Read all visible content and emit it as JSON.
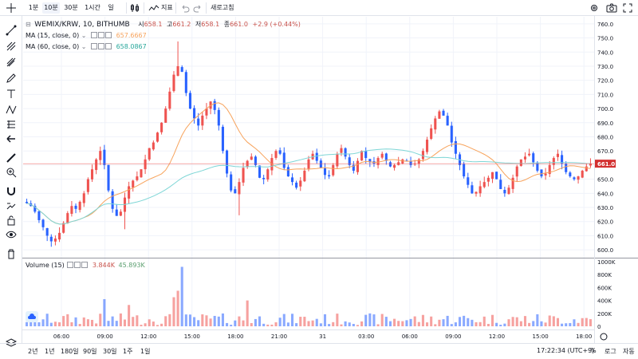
{
  "toolbar": {
    "intervals": [
      "1분",
      "10분",
      "30분",
      "1시간",
      "일"
    ],
    "active_interval": "10분",
    "indicator_label": "지표",
    "undo_icon": "undo-icon",
    "redo_icon": "redo-icon",
    "refresh_label": "새로고침"
  },
  "legend": {
    "symbol": "WEMIX/KRW, 10, BITHUMB",
    "open_label": "시",
    "open": "658.1",
    "high_label": "고",
    "high": "661.2",
    "low_label": "저",
    "low": "658.1",
    "close_label": "종",
    "close": "661.0",
    "change": "+2.9 (+0.44%)",
    "ma15_label": "MA (15, close, 0)",
    "ma15_value": "657.6667",
    "ma60_label": "MA (60, close, 0)",
    "ma60_value": "658.0867",
    "volume_label": "Volume (15)",
    "volume_a": "3.844K",
    "volume_b": "45.893K"
  },
  "price_axis": {
    "ticks": [
      "760.0",
      "750.0",
      "740.0",
      "730.0",
      "720.0",
      "710.0",
      "700.0",
      "690.0",
      "680.0",
      "670.0",
      "660.0",
      "650.0",
      "640.0",
      "630.0",
      "620.0",
      "610.0",
      "600.0"
    ],
    "current_price": "661.0"
  },
  "volume_axis": {
    "ticks": [
      "1000K",
      "800K",
      "600K",
      "400K",
      "200K",
      "0"
    ]
  },
  "time_axis": {
    "ticks": [
      "06:00",
      "09:00",
      "12:00",
      "15:00",
      "18:00",
      "21:00",
      "31",
      "03:00",
      "06:00",
      "09:00",
      "12:00",
      "15:00",
      "18:00"
    ]
  },
  "bottombar": {
    "ranges": [
      "2년",
      "1년",
      "180일",
      "90일",
      "30일",
      "1주",
      "1일"
    ],
    "clock": "17:22:34 (UTC+9)",
    "percent_label": "%",
    "log_label": "로그",
    "auto_label": "자동"
  },
  "colors": {
    "up": "#ef5350",
    "down": "#2962ff",
    "ma15": "#f7a35c",
    "ma60": "#7ed6d6",
    "up_legend": "#c8524b",
    "vol_b": "#5a9e6f"
  },
  "chart_data": {
    "type": "candlestick",
    "symbol": "WEMIX/KRW",
    "interval": "10",
    "exchange": "BITHUMB",
    "ylim": [
      595,
      765
    ],
    "volume_ylim": [
      0,
      1000000
    ],
    "close_series_approx": [
      633,
      631,
      627,
      621,
      616,
      610,
      606,
      608,
      612,
      619,
      626,
      631,
      629,
      634,
      640,
      650,
      657,
      664,
      670,
      660,
      642,
      629,
      624,
      627,
      637,
      645,
      649,
      652,
      657,
      664,
      672,
      676,
      683,
      690,
      700,
      712,
      724,
      730,
      726,
      711,
      700,
      693,
      688,
      695,
      700,
      705,
      699,
      688,
      670,
      654,
      642,
      640,
      648,
      658,
      663,
      666,
      660,
      651,
      650,
      657,
      665,
      670,
      668,
      658,
      652,
      648,
      644,
      649,
      656,
      664,
      668,
      663,
      658,
      653,
      652,
      660,
      668,
      672,
      666,
      660,
      656,
      663,
      670,
      665,
      662,
      661,
      665,
      668,
      663,
      659,
      660,
      662,
      664,
      663,
      660,
      661,
      664,
      670,
      678,
      686,
      693,
      698,
      695,
      688,
      676,
      668,
      660,
      652,
      646,
      640,
      641,
      645,
      648,
      651,
      655,
      650,
      643,
      640,
      644,
      651,
      659,
      664,
      666,
      668,
      662,
      656,
      652,
      654,
      660,
      665,
      668,
      661,
      655,
      652,
      650,
      652,
      656,
      659,
      661
    ]
  }
}
